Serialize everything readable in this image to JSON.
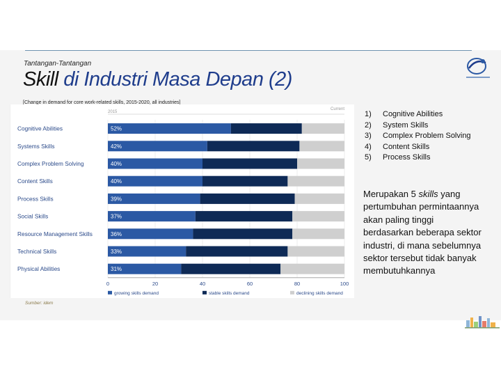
{
  "slide": {
    "kicker": "Tantangan-Tantangan",
    "title_em": "Skill",
    "title_rest": " di Industri Masa Depan (2)",
    "caption": "[Change in demand for core work-related skills, 2015-2020, all industries]",
    "source": "Sumber: idem"
  },
  "list": [
    {
      "num": "1)",
      "text": "Cognitive Abilities"
    },
    {
      "num": "2)",
      "text": "System Skills"
    },
    {
      "num": "3)",
      "text": "Complex Problem Solving"
    },
    {
      "num": "4)",
      "text": "Content Skills"
    },
    {
      "num": "5)",
      "text": "Process Skills"
    }
  ],
  "paragraph": {
    "before": "Merupakan 5 ",
    "em": "skills",
    "after": " yang pertumbuhan permintaannya akan paling tinggi berdasarkan beberapa sektor industri, di mana sebelumnya sektor tersebut tidak banyak membutuhkannya"
  },
  "colors": {
    "growing": "#2b59a4",
    "stable": "#0e2a56",
    "declining": "#cfcfcf",
    "title": "#1f3d8c"
  },
  "chart_data": {
    "type": "bar",
    "orientation": "horizontal",
    "stacked": true,
    "period_label": "2015",
    "end_label": "Current",
    "categories": [
      "Cognitive Abilities",
      "Systems Skills",
      "Complex Problem Solving",
      "Content Skills",
      "Process Skills",
      "Social Skills",
      "Resource Management Skills",
      "Technical Skills",
      "Physical Abilities"
    ],
    "data_labels": [
      "52%",
      "42%",
      "40%",
      "40%",
      "39%",
      "37%",
      "36%",
      "33%",
      "31%"
    ],
    "series": [
      {
        "name": "growing skills demand",
        "values": [
          52,
          42,
          40,
          40,
          39,
          37,
          36,
          33,
          31
        ]
      },
      {
        "name": "stable skills demand",
        "values": [
          30,
          39,
          40,
          36,
          40,
          41,
          42,
          43,
          42
        ]
      },
      {
        "name": "declining skills demand",
        "values": [
          18,
          19,
          20,
          24,
          21,
          22,
          22,
          24,
          27
        ]
      }
    ],
    "xlim": [
      0,
      100
    ],
    "xticks": [
      "0",
      "20",
      "40",
      "60",
      "80",
      "100"
    ],
    "legend_position": "bottom"
  }
}
